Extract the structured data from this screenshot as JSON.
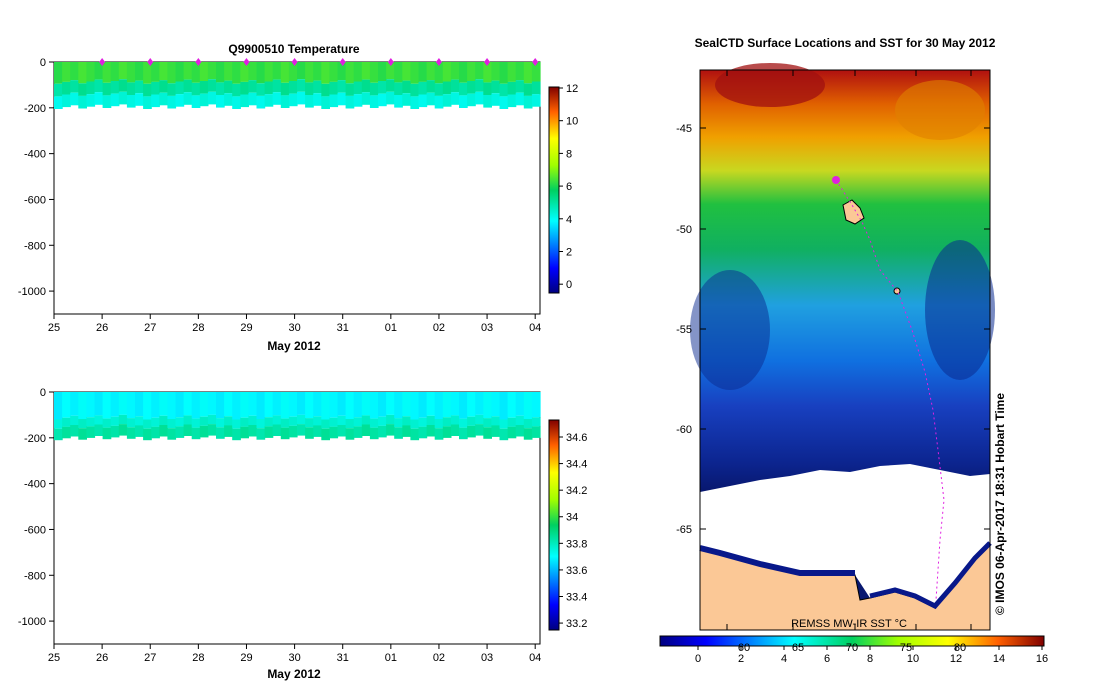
{
  "temp_chart": {
    "type": "heatmap",
    "title": "Q9900510  Temperature",
    "xlabel": "May 2012",
    "x_ticks": [
      "25",
      "26",
      "27",
      "28",
      "29",
      "30",
      "31",
      "01",
      "02",
      "03",
      "04"
    ],
    "y_ticks": [
      0,
      -200,
      -400,
      -600,
      -800,
      -1000
    ],
    "ylim": [
      -1100,
      0
    ],
    "profile_days": [
      26,
      27,
      28,
      29,
      30,
      31,
      32,
      33,
      34,
      35
    ],
    "layers": [
      {
        "from": 0,
        "to": -85,
        "value": 6.3
      },
      {
        "from": -85,
        "to": -140,
        "value": 5.0
      },
      {
        "from": -140,
        "to": -195,
        "value": 4.1
      }
    ],
    "colorbar": {
      "ticks": [
        "12",
        "10",
        "8",
        "6",
        "4",
        "2",
        "0"
      ],
      "min": -1,
      "max": 12.5
    }
  },
  "sal_chart": {
    "type": "heatmap",
    "xlabel": "May 2012",
    "x_ticks": [
      "25",
      "26",
      "27",
      "28",
      "29",
      "30",
      "31",
      "01",
      "02",
      "03",
      "04"
    ],
    "y_ticks": [
      0,
      -200,
      -400,
      -600,
      -800,
      -1000
    ],
    "ylim": [
      -1100,
      0
    ],
    "layers": [
      {
        "from": 0,
        "to": -110,
        "value": 33.7
      },
      {
        "from": -110,
        "to": -150,
        "value": 33.78
      },
      {
        "from": -150,
        "to": -200,
        "value": 33.85
      }
    ],
    "colorbar": {
      "ticks": [
        "34.6",
        "34.4",
        "34.2",
        "34",
        "33.8",
        "33.6",
        "33.4",
        "33.2"
      ],
      "min": 33.15,
      "max": 34.75
    }
  },
  "map": {
    "title": "SealCTD Surface Locations and SST for 30 May 2012",
    "y_ticks": [
      "-45",
      "-50",
      "-55",
      "-60",
      "-65"
    ],
    "source_label": "REMSS MW-IR SST °C",
    "credit": "© IMOS 06-Apr-2017 18:31 Hobart Time",
    "colorbar": {
      "ticks": [
        "0",
        "2",
        "4",
        "6",
        "8",
        "10",
        "12",
        "14",
        "16"
      ],
      "overlay_ticks": [
        "60",
        "65",
        "70",
        "75",
        "80"
      ]
    }
  }
}
